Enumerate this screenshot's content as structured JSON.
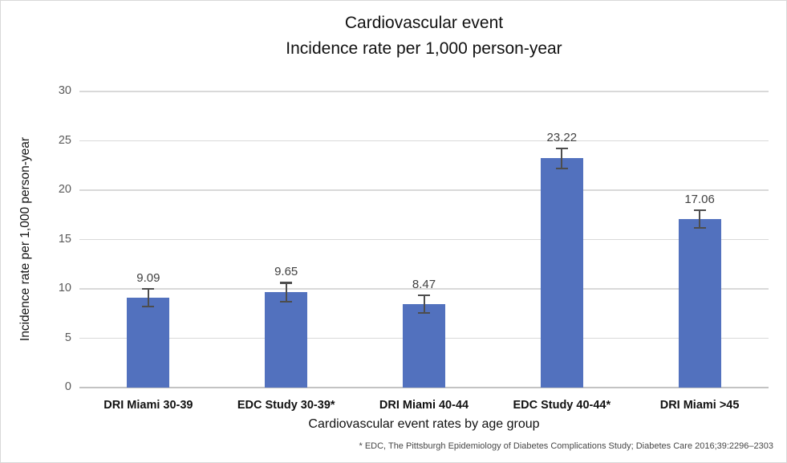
{
  "page": {
    "background": "#ffffff",
    "border_color": "#d9d9d9"
  },
  "chart_data": {
    "type": "bar",
    "title": "Cardiovascular event",
    "subtitle": "Incidence rate per 1,000 person-year",
    "categories": [
      "DRI Miami 30-39",
      "EDC Study 30-39*",
      "DRI Miami 40-44",
      "EDC Study 40-44*",
      "DRI Miami >45"
    ],
    "values": [
      9.09,
      9.65,
      8.47,
      23.22,
      17.06
    ],
    "data_labels": [
      "9.09",
      "9.65",
      "8.47",
      "23.22",
      "17.06"
    ],
    "error_bars": [
      1.0,
      1.05,
      1.0,
      1.1,
      1.0
    ],
    "xlabel": "Cardiovascular event rates by age group",
    "ylabel": "Incidence rate per 1,000 person-year",
    "ylim": [
      0,
      30
    ],
    "yticks": [
      0,
      5,
      10,
      15,
      20,
      25,
      30
    ],
    "grid": true,
    "legend": false,
    "footnote": "* EDC, The Pittsburgh Epidemiology of Diabetes Complications Study; Diabetes Care 2016;39:2296–2303",
    "colors": {
      "bar": "#5271be",
      "error_bar": "#4d4d4d",
      "gridline": "#d9d9d9",
      "axis_line": "#c3c3c3",
      "tick_label": "#595959",
      "data_label": "#404040",
      "title": "#111111",
      "category_label": "#111111",
      "footnote": "#474747"
    }
  }
}
